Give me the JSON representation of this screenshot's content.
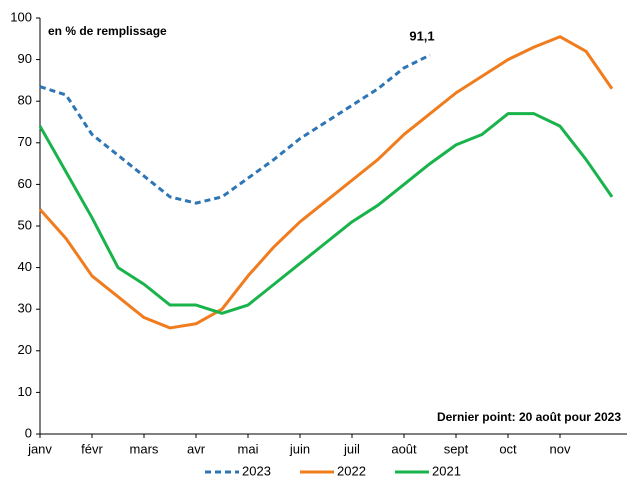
{
  "chart_data": {
    "type": "line",
    "annotations": [
      "en % de remplissage",
      "Dernier point: 20 août pour 2023"
    ],
    "categories": [
      "janv",
      null,
      "févr",
      null,
      "mars",
      null,
      "avr",
      null,
      "mai",
      null,
      "juin",
      null,
      "juil",
      null,
      "août",
      null,
      "sept",
      null,
      "oct",
      null,
      "nov",
      null,
      null
    ],
    "series": [
      {
        "name": "2023",
        "color": "#2e75b6",
        "dashed": true,
        "values": [
          83.5,
          81.5,
          72,
          67,
          62,
          57,
          55.5,
          57,
          61.5,
          66,
          71,
          75,
          79,
          83,
          88,
          91.1,
          null,
          null,
          null,
          null,
          null,
          null,
          null
        ],
        "value_labels": [
          null,
          null,
          null,
          null,
          null,
          null,
          null,
          null,
          null,
          null,
          null,
          null,
          null,
          null,
          null,
          "91,1",
          null,
          null,
          null,
          null,
          null,
          null,
          null
        ]
      },
      {
        "name": "2022",
        "color": "#f07c1e",
        "values": [
          54,
          47,
          38,
          33,
          28,
          25.5,
          26.5,
          30,
          38,
          45,
          51,
          56,
          61,
          66,
          72,
          77,
          82,
          86,
          90,
          93,
          95.5,
          92,
          83
        ]
      },
      {
        "name": "2021",
        "color": "#19b34b",
        "values": [
          74,
          63,
          52,
          40,
          36,
          31,
          31,
          29,
          31,
          36,
          41,
          46,
          51,
          55,
          60,
          65,
          69.5,
          72,
          77,
          77,
          74,
          66,
          57
        ]
      }
    ],
    "ylim": [
      0,
      100
    ],
    "yticks": [
      0,
      10,
      20,
      30,
      40,
      50,
      60,
      70,
      80,
      90,
      100
    ],
    "grid": false
  }
}
